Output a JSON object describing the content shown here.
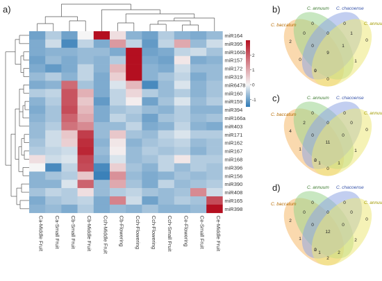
{
  "panel_labels": {
    "a": "a)",
    "b": "b)",
    "c": "c)",
    "d": "d)"
  },
  "colors": {
    "dendrogram": "#555555",
    "scale_low": "#2e79b5",
    "scale_mid": "#f5f5f5",
    "scale_high": "#b40f20",
    "venn_baccatum": "#f6b96b",
    "venn_annuum": "#9bd38e",
    "venn_chacoense": "#8fa6e4",
    "venn_annuum2": "#ece87a"
  },
  "chart_data": {
    "type": "heatmap",
    "rows": [
      "miR164",
      "miR395",
      "miR166b",
      "miR157",
      "miR172",
      "miR319",
      "miR6478",
      "miR160",
      "miR159",
      "miR394",
      "miR166a",
      "miR403",
      "miR171",
      "miR162",
      "miR167",
      "miR168",
      "miR396",
      "miR156",
      "miR390",
      "miR408",
      "miR165",
      "miR398"
    ],
    "columns": [
      "Ca-Middle Fruit",
      "Ca-Small Fruit",
      "Cb-Small Fruit",
      "Cb-Middle Fruit",
      "Cch-Middle Fruit",
      "Cb-Flowering",
      "Cch-Flowering",
      "Cch-Flowering",
      "Cch-Small Fruit",
      "Ce-Flowering",
      "Ce-Small Fruit",
      "Ce-Middle Fruit"
    ],
    "values": [
      [
        -1.0,
        -0.5,
        -1.0,
        0.0,
        3.0,
        0.3,
        -0.8,
        -1.0,
        -0.5,
        -0.8,
        -0.9,
        -0.7
      ],
      [
        -0.9,
        -0.3,
        -1.3,
        -0.4,
        -0.9,
        1.2,
        -0.4,
        -1.1,
        -0.4,
        1.0,
        -0.7,
        -0.3
      ],
      [
        -0.9,
        -0.8,
        -0.8,
        -0.7,
        -0.7,
        -0.9,
        3.0,
        -1.0,
        -0.9,
        -0.4,
        -0.3,
        -0.6
      ],
      [
        -1.0,
        -0.7,
        -0.9,
        -0.7,
        -0.8,
        -0.5,
        3.0,
        -0.9,
        -1.0,
        0.2,
        -0.9,
        -0.8
      ],
      [
        -0.9,
        -1.1,
        -0.9,
        -0.4,
        -0.8,
        0.8,
        3.0,
        -0.8,
        -0.9,
        -0.3,
        -0.7,
        -0.7
      ],
      [
        -0.7,
        -0.5,
        -0.8,
        -0.4,
        -0.9,
        0.5,
        3.0,
        -0.8,
        -0.6,
        -0.4,
        -0.9,
        -0.7
      ],
      [
        -0.9,
        -0.8,
        1.8,
        -0.6,
        -0.9,
        -0.2,
        0.8,
        -1.3,
        -0.7,
        -0.2,
        -0.8,
        -0.6
      ],
      [
        -0.5,
        -0.4,
        2.1,
        0.9,
        -0.9,
        -0.4,
        0.4,
        -0.5,
        -0.7,
        -0.5,
        -0.8,
        -0.6
      ],
      [
        -0.8,
        -0.5,
        2.1,
        0.6,
        -1.1,
        -0.4,
        0.1,
        -1.0,
        -0.6,
        -0.2,
        -0.7,
        -0.5
      ],
      [
        -0.9,
        -0.6,
        2.2,
        0.8,
        -0.9,
        -0.6,
        -0.5,
        -0.7,
        -0.8,
        -0.5,
        -0.8,
        -0.8
      ],
      [
        -0.8,
        -0.6,
        1.9,
        1.0,
        -0.9,
        -0.4,
        -0.6,
        -1.0,
        -0.6,
        -0.5,
        -0.7,
        -0.6
      ],
      [
        -0.7,
        -0.5,
        1.7,
        1.4,
        -0.7,
        -0.7,
        -0.4,
        -0.9,
        -0.8,
        -0.4,
        -0.8,
        -0.9
      ],
      [
        -0.7,
        -0.3,
        0.6,
        2.4,
        -0.7,
        0.6,
        -0.6,
        -0.7,
        -0.4,
        -0.2,
        -0.5,
        -0.5
      ],
      [
        -0.6,
        -0.3,
        0.5,
        2.6,
        -0.8,
        0.2,
        -0.8,
        -0.6,
        -0.5,
        -0.4,
        -0.7,
        -0.6
      ],
      [
        -0.5,
        -0.4,
        -0.3,
        2.7,
        -0.7,
        0.1,
        -0.7,
        -0.5,
        -0.6,
        -0.5,
        -0.8,
        -0.6
      ],
      [
        0.3,
        -0.3,
        -0.2,
        2.3,
        -0.8,
        -0.2,
        -0.7,
        -0.6,
        -0.4,
        0.2,
        -0.5,
        -0.5
      ],
      [
        0.0,
        -1.3,
        -0.4,
        2.2,
        -1.3,
        0.5,
        -0.6,
        -0.8,
        -0.4,
        -0.7,
        -0.5,
        -0.6
      ],
      [
        -0.8,
        -0.6,
        -0.5,
        0.6,
        -1.4,
        1.3,
        -0.7,
        -0.9,
        -0.8,
        -0.6,
        -0.7,
        -0.6
      ],
      [
        -0.8,
        -0.8,
        -0.2,
        1.9,
        -0.7,
        1.0,
        -0.6,
        -0.9,
        -0.4,
        -0.7,
        -0.6,
        -0.5
      ],
      [
        -0.6,
        -0.4,
        -0.5,
        0.3,
        -0.7,
        -0.5,
        -0.4,
        -0.6,
        -0.7,
        -0.6,
        1.4,
        -0.3
      ],
      [
        -0.9,
        -0.6,
        -0.5,
        -0.4,
        -0.9,
        1.5,
        -0.3,
        -1.0,
        -0.7,
        -0.5,
        -0.6,
        2.2
      ],
      [
        -0.8,
        -0.7,
        -0.9,
        -0.5,
        -0.9,
        -0.7,
        -0.8,
        -0.6,
        -0.8,
        -0.8,
        -0.7,
        3.0
      ]
    ],
    "scale": {
      "min": -1.5,
      "max": 3,
      "ticks": [
        "2",
        "1",
        "0",
        "-1"
      ],
      "tick_values": [
        2,
        1,
        0,
        -1
      ]
    },
    "dendrogram": "hierarchical clustering of rows and columns"
  },
  "venn": [
    {
      "id": "b",
      "sets": [
        "C. baccatum",
        "C. annuum",
        "C. chacoense",
        "C. annuum"
      ],
      "counts": {
        "baccatum_only": "2",
        "annuum_only": "0",
        "chacoense_only": "0",
        "annuum2_only": "0",
        "bac_ann": "0",
        "ann_cha": "0",
        "cha_ann2": "1",
        "bac_ann2_left": "0",
        "bac_cha_ann": "0",
        "all": "9",
        "ann_cha_ann2": "1",
        "bac_ann2": "0",
        "bac_cha": "0",
        "center_low": "9",
        "right_low": "1"
      }
    },
    {
      "id": "c",
      "sets": [
        "C. baccatum",
        "C. annuum",
        "C. chacoense",
        "C. annuum"
      ],
      "counts": {
        "baccatum_only": "4",
        "annuum_only": "0",
        "chacoense_only": "0",
        "annuum2_only": "0",
        "bac_ann": "2",
        "ann_cha": "0",
        "cha_ann2": "0",
        "bac_ann2_left": "1",
        "bac_cha_ann": "0",
        "all": "11",
        "ann_cha_ann2": "0",
        "bac_ann2": "2",
        "bac_cha": "0",
        "center_low": "0",
        "right_low": "1",
        "bottom_a": "1",
        "bottom_b": "1"
      }
    },
    {
      "id": "d",
      "sets": [
        "C. baccatum",
        "C. annuum",
        "C. chacoense",
        "C. annuum"
      ],
      "counts": {
        "baccatum_only": "2",
        "annuum_only": "0",
        "chacoense_only": "0",
        "annuum2_only": "0",
        "bac_ann": "0",
        "ann_cha": "0",
        "cha_ann2": "0",
        "bac_ann2_left": "1",
        "bac_cha_ann": "0",
        "all": "12",
        "ann_cha_ann2": "0",
        "bac_ann2": "2",
        "bac_cha": "2",
        "center_low": "0",
        "right_low": "2",
        "bottom_a": "1",
        "bottom_b": "2"
      }
    }
  ]
}
